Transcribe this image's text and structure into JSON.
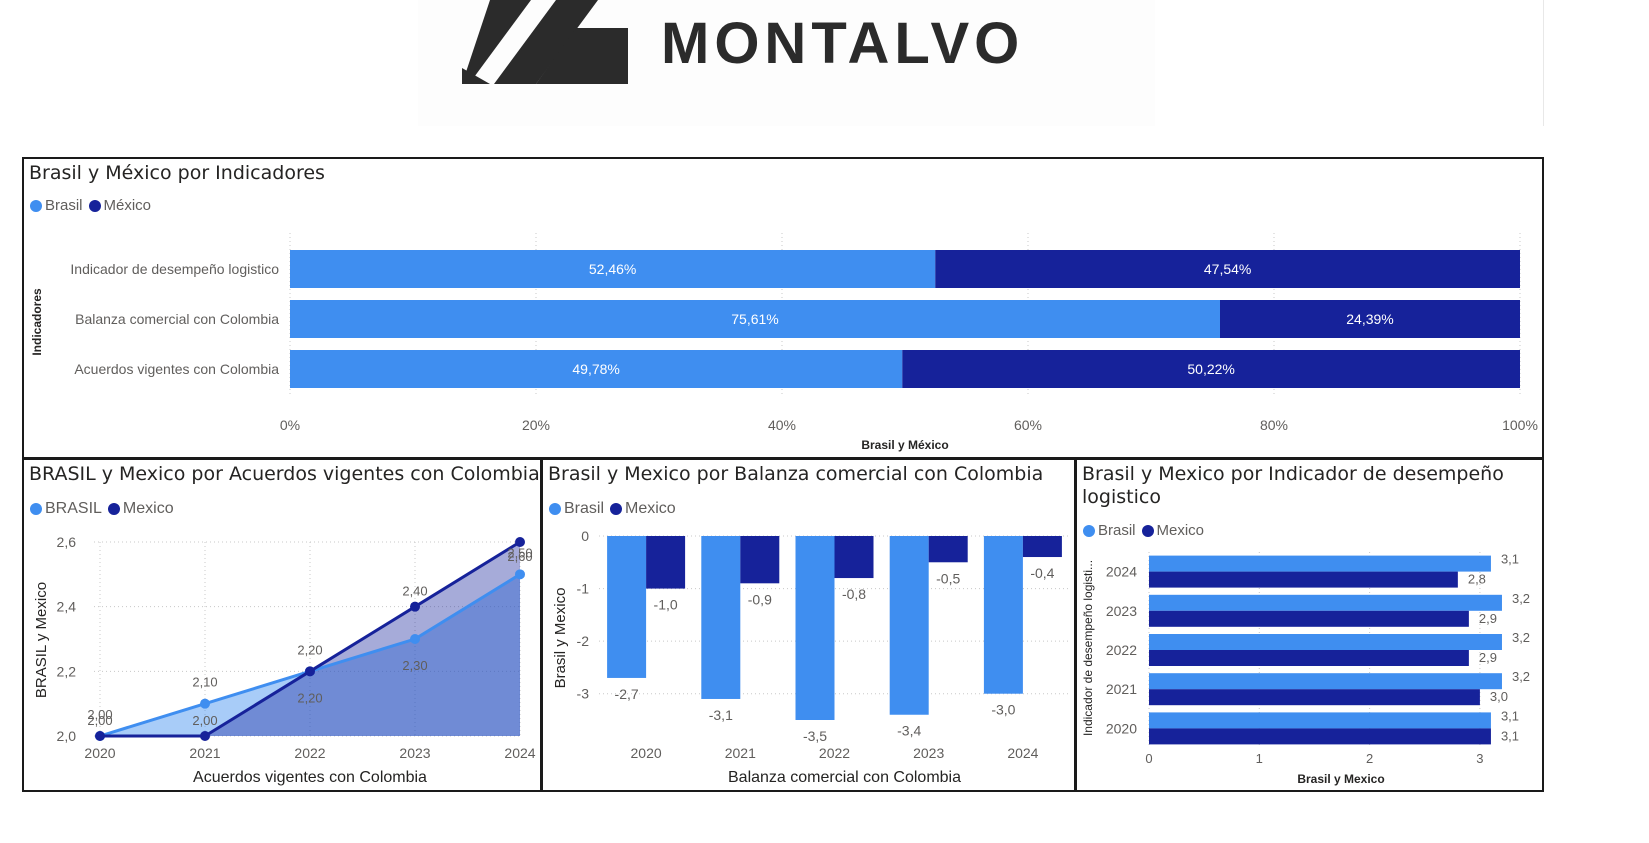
{
  "brand": {
    "name": "MONTALVO"
  },
  "colors": {
    "brasil": "#3f8ef0",
    "mexico": "#16229a",
    "grid": "#c8c8c8",
    "axis_text": "#605e5c"
  },
  "chart_data": [
    {
      "type": "bar",
      "subtype": "100%-stacked-horizontal",
      "title": "Brasil y México por Indicadores",
      "legend": [
        "Brasil",
        "México"
      ],
      "ylabel": "Indicadores",
      "xlabel": "Brasil y México",
      "categories": [
        "Indicador de desempeño logistico",
        "Balanza comercial con Colombia",
        "Acuerdos vigentes con Colombia"
      ],
      "series": [
        {
          "name": "Brasil",
          "values": [
            52.46,
            75.61,
            49.78
          ],
          "labels": [
            "52,46%",
            "75,61%",
            "49,78%"
          ]
        },
        {
          "name": "México",
          "values": [
            47.54,
            24.39,
            50.22
          ],
          "labels": [
            "47,54%",
            "24,39%",
            "50,22%"
          ]
        }
      ],
      "xticks": [
        "0%",
        "20%",
        "40%",
        "60%",
        "80%",
        "100%"
      ],
      "xlim": [
        0,
        100
      ],
      "grid": true,
      "legend_position": "top-left"
    },
    {
      "type": "area",
      "title": "BRASIL y Mexico por Acuerdos vigentes con Colombia",
      "legend": [
        "BRASIL",
        "Mexico"
      ],
      "xlabel": "Acuerdos vigentes con Colombia",
      "ylabel": "BRASIL y Mexico",
      "x": [
        "2020",
        "2021",
        "2022",
        "2023",
        "2024"
      ],
      "series": [
        {
          "name": "BRASIL",
          "values": [
            2.0,
            2.1,
            2.2,
            2.3,
            2.5
          ],
          "labels": [
            "2,00",
            "2,10",
            "2,20",
            "2,30",
            "2,50"
          ]
        },
        {
          "name": "Mexico",
          "values": [
            2.0,
            2.0,
            2.2,
            2.4,
            2.6
          ],
          "labels": [
            "2,00",
            "2,00",
            "2,20",
            "2,40",
            "2,60"
          ]
        }
      ],
      "yticks": [
        "2,0",
        "2,2",
        "2,4",
        "2,6"
      ],
      "ylim": [
        2.0,
        2.6
      ],
      "grid": true,
      "legend_position": "top-left"
    },
    {
      "type": "bar",
      "subtype": "clustered-column",
      "title": "Brasil y Mexico por Balanza comercial con Colombia",
      "legend": [
        "Brasil",
        "Mexico"
      ],
      "xlabel": "Balanza comercial con Colombia",
      "ylabel": "Brasil y Mexico",
      "categories": [
        "2020",
        "2021",
        "2022",
        "2023",
        "2024"
      ],
      "series": [
        {
          "name": "Brasil",
          "values": [
            -2.7,
            -3.1,
            -3.5,
            -3.4,
            -3.0
          ],
          "labels": [
            "-2,7",
            "-3,1",
            "-3,5",
            "-3,4",
            "-3,0"
          ]
        },
        {
          "name": "Mexico",
          "values": [
            -1.0,
            -0.9,
            -0.8,
            -0.5,
            -0.4
          ],
          "labels": [
            "-1,0",
            "-0,9",
            "-0,8",
            "-0,5",
            "-0,4"
          ]
        }
      ],
      "yticks": [
        "0",
        "-1",
        "-2",
        "-3"
      ],
      "ylim": [
        -3.5,
        0
      ],
      "grid": true,
      "legend_position": "top-left"
    },
    {
      "type": "bar",
      "subtype": "clustered-horizontal",
      "title": "Brasil y Mexico por Indicador de desempeño logistico",
      "legend": [
        "Brasil",
        "Mexico"
      ],
      "xlabel": "Brasil y Mexico",
      "ylabel": "Indicador de desempeño logisti...",
      "categories": [
        "2024",
        "2023",
        "2022",
        "2021",
        "2020"
      ],
      "series": [
        {
          "name": "Brasil",
          "values": [
            3.1,
            3.2,
            3.2,
            3.2,
            3.1
          ],
          "labels": [
            "3,1",
            "3,2",
            "3,2",
            "3,2",
            "3,1"
          ]
        },
        {
          "name": "Mexico",
          "values": [
            2.8,
            2.9,
            2.9,
            3.0,
            3.1
          ],
          "labels": [
            "2,8",
            "2,9",
            "2,9",
            "3,0",
            "3,1"
          ]
        }
      ],
      "xticks": [
        "0",
        "1",
        "2",
        "3"
      ],
      "xlim": [
        0,
        3.3
      ],
      "grid": true,
      "legend_position": "top-left"
    }
  ]
}
